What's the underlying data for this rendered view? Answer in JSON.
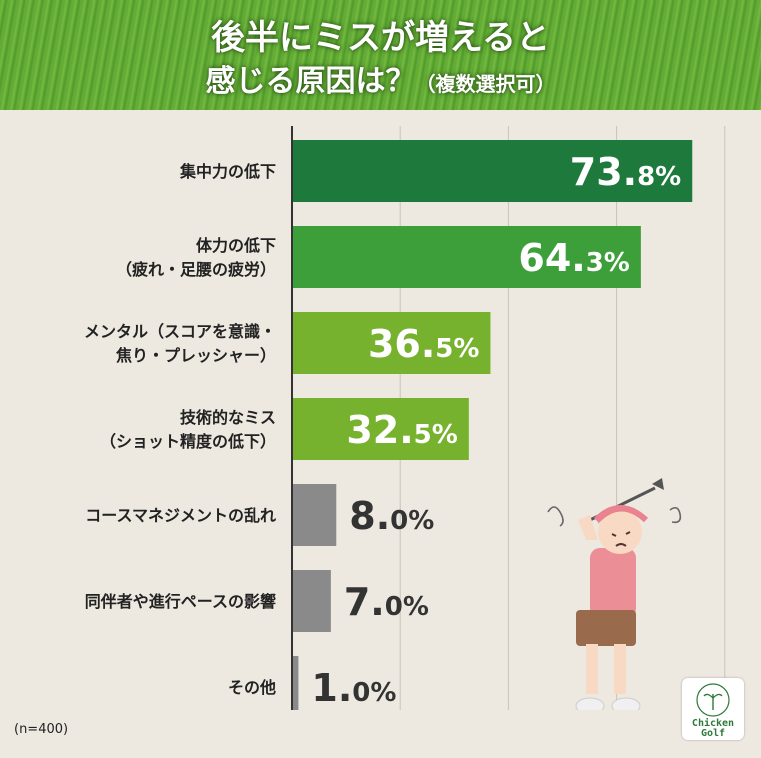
{
  "header": {
    "title_line1": "後半にミスが増えると",
    "title_line2": "感じる原因は？",
    "title_suffix": "（複数選択可）"
  },
  "note": "(n=400)",
  "logo": {
    "line1": "Chicken",
    "line2": "Golf"
  },
  "colors": {
    "dark_green": "#1e7a3c",
    "mid_green": "#3d9f3a",
    "light_green": "#76b22d",
    "gray": "#8a8a8a"
  },
  "chart_data": {
    "type": "bar",
    "orientation": "horizontal",
    "categories": [
      [
        "集中力の低下"
      ],
      [
        "体力の低下",
        "（疲れ・足腰の疲労）"
      ],
      [
        "メンタル（スコアを意識・",
        "焦り・プレッシャー）"
      ],
      [
        "技術的なミス",
        "（ショット精度の低下）"
      ],
      [
        "コースマネジメントの乱れ"
      ],
      [
        "同伴者や進行ペースの影響"
      ],
      [
        "その他"
      ]
    ],
    "values": [
      73.8,
      64.3,
      36.5,
      32.5,
      8.0,
      7.0,
      1.0
    ],
    "value_labels": [
      [
        "73.",
        "8%"
      ],
      [
        "64.",
        "3%"
      ],
      [
        "36.",
        "5%"
      ],
      [
        "32.",
        "5%"
      ],
      [
        "8.",
        "0%"
      ],
      [
        "7.",
        "0%"
      ],
      [
        "1.",
        "0%"
      ]
    ],
    "bar_colors": [
      "#1e7a3c",
      "#3d9f3a",
      "#76b22d",
      "#76b22d",
      "#8a8a8a",
      "#8a8a8a",
      "#8a8a8a"
    ],
    "xlim": [
      0,
      100
    ],
    "grid": true,
    "unit": "%"
  }
}
